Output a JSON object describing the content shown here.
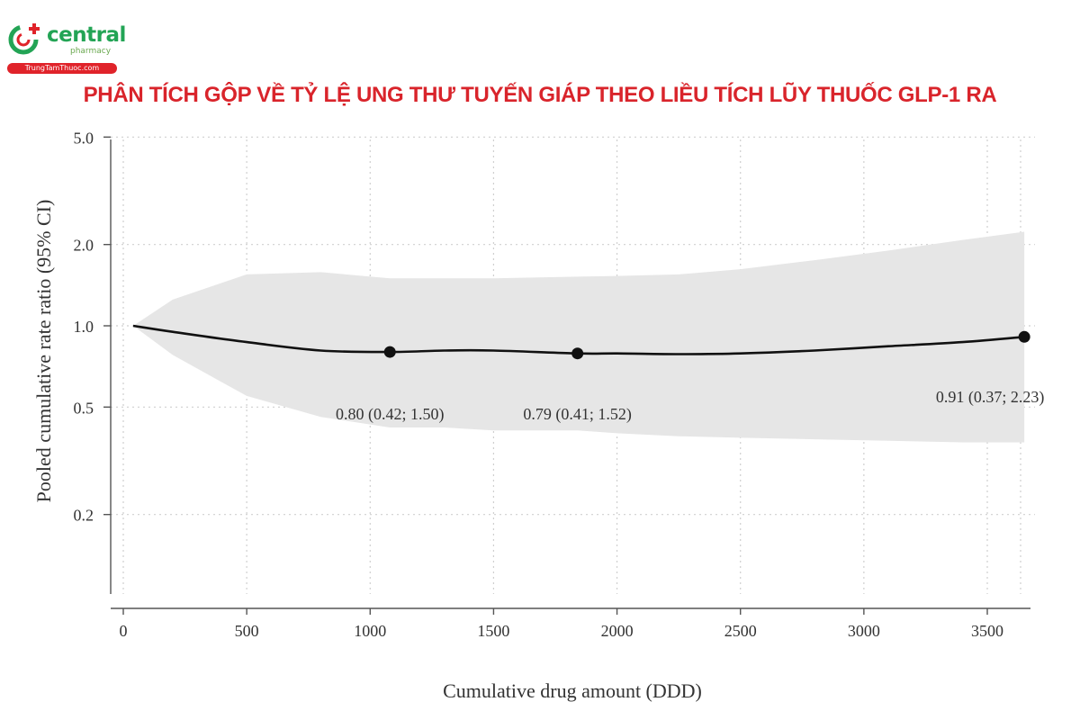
{
  "brand": {
    "name": "central",
    "tagline": "pharmacy",
    "url": "TrungTamThuoc.com",
    "colors": {
      "primary": "#23a455",
      "accent": "#e0232a"
    }
  },
  "headline": "PHÂN TÍCH GỘP VỀ TỶ LỆ UNG THƯ TUYẾN GIÁP THEO LIỀU TÍCH LŨY THUỐC GLP-1 RA",
  "chart_data": {
    "type": "line",
    "title": "",
    "xlabel": "Cumulative drug amount (DDD)",
    "ylabel": "Pooled cumulative rate ratio (95% CI)",
    "xlim": [
      0,
      3650
    ],
    "ylim": [
      0.1,
      5.0
    ],
    "y_scale": "log",
    "x_ticks": [
      0,
      500,
      1000,
      1500,
      2000,
      2500,
      3000,
      3500
    ],
    "y_ticks": [
      {
        "value": 5.0,
        "label": "5.0"
      },
      {
        "value": 2.0,
        "label": "2.0"
      },
      {
        "value": 1.0,
        "label": "1.0"
      },
      {
        "value": 0.5,
        "label": "0.5"
      },
      {
        "value": 0.2,
        "label": "0.2"
      }
    ],
    "grid": true,
    "series": [
      {
        "values_x": [
          40,
          200,
          500,
          800,
          1080,
          1300,
          1500,
          1840,
          2000,
          2250,
          2500,
          2800,
          3100,
          3400,
          3650
        ],
        "values_y": [
          1.0,
          0.95,
          0.87,
          0.81,
          0.8,
          0.81,
          0.81,
          0.79,
          0.79,
          0.785,
          0.79,
          0.81,
          0.84,
          0.87,
          0.91
        ],
        "lower": [
          1.0,
          0.78,
          0.55,
          0.46,
          0.42,
          0.42,
          0.41,
          0.41,
          0.4,
          0.39,
          0.385,
          0.38,
          0.375,
          0.37,
          0.37
        ],
        "upper": [
          1.0,
          1.25,
          1.55,
          1.58,
          1.5,
          1.5,
          1.5,
          1.52,
          1.53,
          1.55,
          1.62,
          1.75,
          1.9,
          2.08,
          2.23
        ],
        "color": "#111111",
        "band_color": "#e6e6e6"
      }
    ],
    "points": [
      {
        "x": 1080,
        "y": 0.8,
        "label": "0.80 (0.42; 1.50)"
      },
      {
        "x": 1840,
        "y": 0.79,
        "label": "0.79 (0.41; 1.52)"
      },
      {
        "x": 3650,
        "y": 0.91,
        "label": "0.91 (0.37; 2.23)"
      }
    ]
  }
}
